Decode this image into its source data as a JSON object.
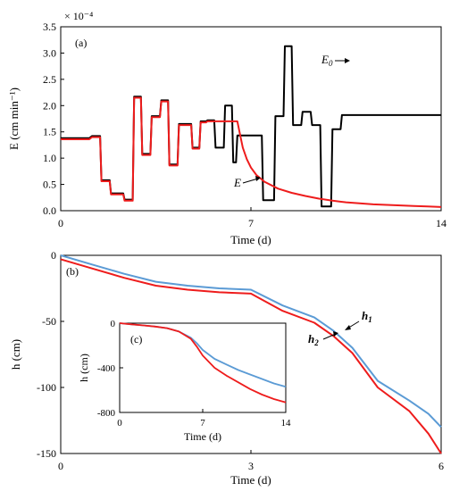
{
  "chart_data": [
    {
      "type": "line",
      "panel_label": "(a)",
      "xlabel": "Time (d)",
      "ylabel": "E (cm min⁻¹)",
      "y_multiplier": "× 10⁻⁴",
      "xlim": [
        0,
        14
      ],
      "ylim": [
        0,
        3.5
      ],
      "xticks": [
        "0",
        "7",
        "14"
      ],
      "yticks": [
        "0.0",
        "0.5",
        "1.0",
        "1.5",
        "2.0",
        "2.5",
        "3.0",
        "3.5"
      ],
      "grid": false,
      "series": [
        {
          "name": "E0",
          "color": "#000000",
          "annotation": "E",
          "annotation_sub": "0",
          "x": [
            0,
            1.05,
            1.15,
            1.45,
            1.5,
            1.8,
            1.85,
            2.3,
            2.35,
            2.65,
            2.7,
            2.95,
            3.0,
            3.3,
            3.35,
            3.65,
            3.7,
            3.95,
            4.0,
            4.3,
            4.35,
            4.8,
            4.85,
            5.1,
            5.15,
            5.35,
            5.4,
            5.65,
            5.7,
            6.0,
            6.05,
            6.3,
            6.35,
            6.45,
            6.5,
            7.4,
            7.45,
            7.85,
            7.9,
            8.2,
            8.25,
            8.5,
            8.55,
            8.85,
            8.9,
            9.2,
            9.25,
            9.55,
            9.6,
            9.95,
            10.0,
            10.3,
            10.35,
            10.6,
            10.65,
            11.0,
            11.05,
            11.35,
            11.4,
            11.7,
            11.75,
            12.15,
            12.2,
            12.5,
            12.55,
            12.85,
            12.9,
            13.25,
            13.3,
            14.0
          ],
          "y": [
            1.38,
            1.38,
            1.42,
            1.42,
            0.58,
            0.58,
            0.33,
            0.33,
            0.21,
            0.21,
            2.17,
            2.17,
            1.08,
            1.08,
            1.8,
            1.8,
            2.1,
            2.1,
            0.88,
            0.88,
            1.65,
            1.65,
            1.2,
            1.2,
            1.7,
            1.7,
            1.72,
            1.72,
            1.2,
            1.2,
            2.0,
            2.0,
            0.92,
            0.92,
            1.43,
            1.43,
            0.2,
            0.2,
            1.8,
            1.8,
            3.13,
            3.13,
            1.63,
            1.63,
            1.88,
            1.88,
            1.63,
            1.63,
            0.08,
            0.08,
            1.55,
            1.55,
            1.82,
            1.82,
            1.82,
            1.82,
            1.82,
            1.82,
            1.82,
            1.82,
            1.82,
            1.82,
            1.82,
            1.82,
            1.82,
            1.82,
            1.82,
            1.82,
            1.82,
            1.82
          ]
        },
        {
          "name": "E",
          "color": "#ee1c1c",
          "annotation": "E",
          "x": [
            0,
            1.05,
            1.15,
            1.45,
            1.5,
            1.8,
            1.85,
            2.3,
            2.35,
            2.65,
            2.7,
            2.95,
            3.0,
            3.3,
            3.35,
            3.65,
            3.7,
            3.95,
            4.0,
            4.3,
            4.35,
            4.8,
            4.85,
            5.1,
            5.15,
            5.35,
            5.4,
            5.65,
            5.7,
            6.0,
            6.05,
            6.3,
            6.35,
            6.45,
            6.5,
            6.6,
            6.7,
            6.85,
            7.0,
            7.2,
            7.5,
            8.0,
            8.5,
            9.0,
            9.5,
            10.0,
            10.5,
            11.0,
            11.5,
            12.0,
            12.5,
            13.0,
            13.5,
            14.0
          ],
          "y": [
            1.36,
            1.36,
            1.4,
            1.4,
            0.56,
            0.56,
            0.31,
            0.31,
            0.19,
            0.19,
            2.15,
            2.15,
            1.06,
            1.06,
            1.78,
            1.78,
            2.08,
            2.08,
            0.86,
            0.86,
            1.63,
            1.63,
            1.18,
            1.18,
            1.68,
            1.68,
            1.7,
            1.7,
            1.7,
            1.7,
            1.7,
            1.7,
            1.7,
            1.7,
            1.7,
            1.45,
            1.2,
            0.98,
            0.82,
            0.68,
            0.55,
            0.42,
            0.34,
            0.28,
            0.23,
            0.19,
            0.16,
            0.14,
            0.12,
            0.11,
            0.1,
            0.09,
            0.08,
            0.07
          ]
        }
      ]
    },
    {
      "type": "line",
      "panel_label": "(b)",
      "xlabel": "Time (d)",
      "ylabel": "h (cm)",
      "xlim": [
        0,
        6
      ],
      "ylim": [
        -150,
        0
      ],
      "xticks": [
        "0",
        "3",
        "6"
      ],
      "yticks": [
        "0",
        "-50",
        "-100",
        "-150"
      ],
      "grid": false,
      "series": [
        {
          "name": "h1",
          "color": "#5b9bd5",
          "annotation": "h",
          "annotation_sub": "1",
          "x": [
            0,
            0.5,
            1.0,
            1.5,
            2.0,
            2.5,
            3.0,
            3.5,
            4.0,
            4.3,
            4.6,
            5.0,
            5.5,
            5.8,
            6.0
          ],
          "y": [
            0,
            -7,
            -14,
            -20,
            -23,
            -25,
            -26,
            -38,
            -47,
            -57,
            -70,
            -95,
            -110,
            -120,
            -130
          ]
        },
        {
          "name": "h2",
          "color": "#ee1c1c",
          "annotation": "h",
          "annotation_sub": "2",
          "x": [
            0,
            0.5,
            1.0,
            1.5,
            2.0,
            2.5,
            3.0,
            3.5,
            4.0,
            4.3,
            4.6,
            5.0,
            5.5,
            5.8,
            6.0
          ],
          "y": [
            -3,
            -10,
            -17,
            -23,
            -26,
            -28,
            -29,
            -42,
            -51,
            -61,
            -74,
            -100,
            -118,
            -135,
            -150
          ]
        }
      ],
      "inset": {
        "panel_label": "(c)",
        "xlabel": "Time (d)",
        "ylabel": "h (cm)",
        "xlim": [
          0,
          14
        ],
        "ylim": [
          -800,
          0
        ],
        "xticks": [
          "0",
          "7",
          "14"
        ],
        "yticks": [
          "0",
          "-400",
          "-800"
        ],
        "series": [
          {
            "name": "h1",
            "color": "#5b9bd5",
            "x": [
              0,
              1,
              2,
              3,
              4,
              5,
              6,
              6.5,
              7,
              8,
              9,
              10,
              11,
              12,
              13,
              14
            ],
            "y": [
              0,
              -10,
              -20,
              -30,
              -45,
              -75,
              -130,
              -180,
              -240,
              -320,
              -370,
              -420,
              -460,
              -500,
              -540,
              -570
            ]
          },
          {
            "name": "h2",
            "color": "#ee1c1c",
            "x": [
              0,
              1,
              2,
              3,
              4,
              5,
              6,
              6.5,
              7,
              8,
              9,
              10,
              11,
              12,
              13,
              14
            ],
            "y": [
              0,
              -10,
              -20,
              -30,
              -45,
              -75,
              -140,
              -210,
              -290,
              -400,
              -470,
              -530,
              -590,
              -640,
              -680,
              -710
            ]
          }
        ]
      }
    }
  ]
}
